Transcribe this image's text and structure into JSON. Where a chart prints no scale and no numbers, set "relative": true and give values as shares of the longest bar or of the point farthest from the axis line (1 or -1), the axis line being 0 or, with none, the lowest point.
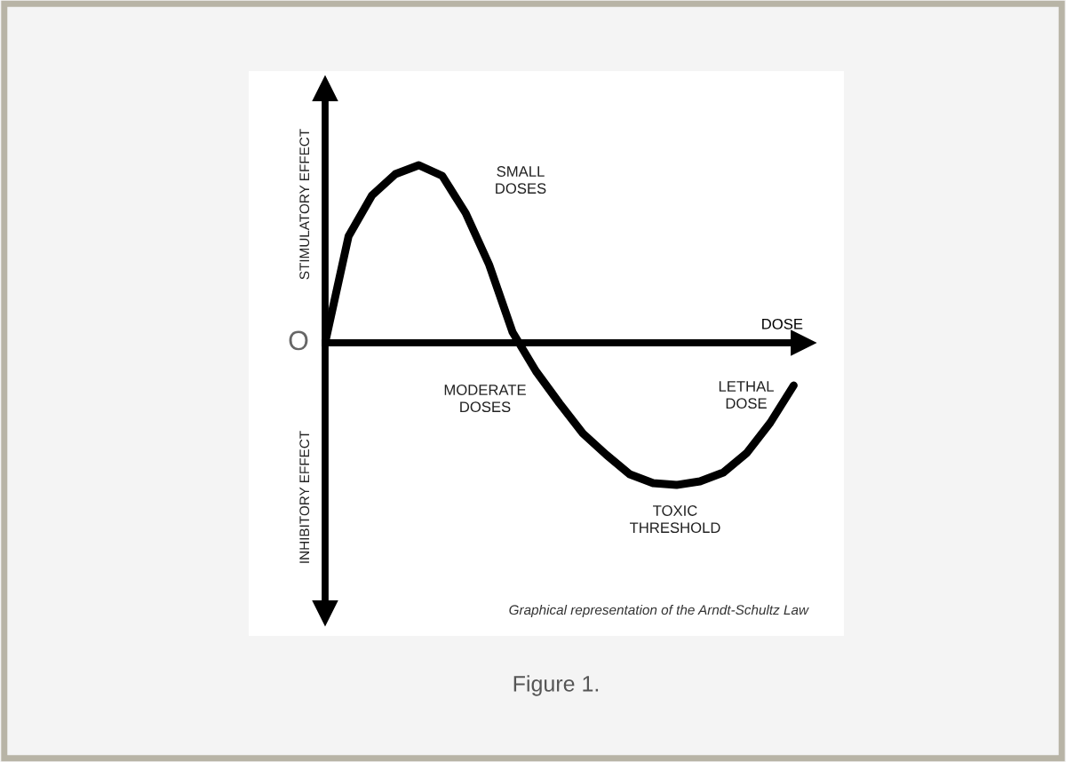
{
  "chart_data": {
    "type": "line",
    "relative": true,
    "xlabel": "DOSE",
    "categories": [
      null,
      null,
      null,
      null,
      null,
      null,
      null,
      null,
      null,
      null,
      null,
      null,
      null,
      null,
      null,
      null,
      null,
      null,
      null,
      null,
      null
    ],
    "series": [
      {
        "color": "#000000",
        "line_style": "solid",
        "values": [
          0,
          0.6,
          0.83,
          0.95,
          1.0,
          0.94,
          0.73,
          0.44,
          0.06,
          -0.16,
          -0.34,
          -0.51,
          -0.63,
          -0.74,
          -0.79,
          -0.8,
          -0.78,
          -0.73,
          -0.62,
          -0.45,
          -0.24
        ]
      }
    ],
    "marker": "none",
    "grid": false,
    "legend": false,
    "annotations": [
      "STIMULATORY EFFECT",
      "INHIBITORY EFFECT",
      "O",
      "SMALL\nDOSES",
      "MODERATE\nDOSES",
      "TOXIC\nTHRESHOLD",
      "LETHAL\nDOSE",
      "Graphical representation of the Arndt-Schultz Law",
      "Figure 1."
    ]
  }
}
